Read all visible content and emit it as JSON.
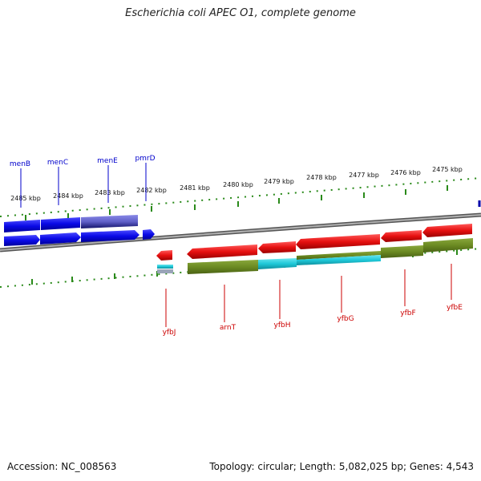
{
  "title": "Escherichia coli APEC O1, complete genome",
  "footer": {
    "accession": "Accession: NC_008563",
    "summary": "Topology: circular; Length: 5,082,025 bp; Genes: 4,543"
  },
  "colors": {
    "forward_gene": "#0a0ae6",
    "reverse_gene": "#e61010",
    "forward_rna": "#6060c8",
    "olive_feature": "#6b8a22",
    "cyan_feature": "#1ec8d8",
    "tick": "#2a8a1a",
    "backbone": "#808080",
    "forward_label": "#0000cc",
    "reverse_label": "#cc0000"
  },
  "scale": {
    "ticks": [
      {
        "label": "2485 kbp"
      },
      {
        "label": "2484 kbp"
      },
      {
        "label": "2483 kbp"
      },
      {
        "label": "2482 kbp"
      },
      {
        "label": "2481 kbp"
      },
      {
        "label": "2480 kbp"
      },
      {
        "label": "2479 kbp"
      },
      {
        "label": "2478 kbp"
      },
      {
        "label": "2477 kbp"
      },
      {
        "label": "2476 kbp"
      },
      {
        "label": "2475 kbp"
      }
    ]
  },
  "genes": {
    "forward": [
      {
        "name": "menB"
      },
      {
        "name": "menC"
      },
      {
        "name": "menE"
      },
      {
        "name": "pmrD"
      }
    ],
    "reverse": [
      {
        "name": "yfbJ"
      },
      {
        "name": "arnT"
      },
      {
        "name": "yfbH"
      },
      {
        "name": "yfbG"
      },
      {
        "name": "yfbF"
      },
      {
        "name": "yfbE"
      }
    ]
  }
}
